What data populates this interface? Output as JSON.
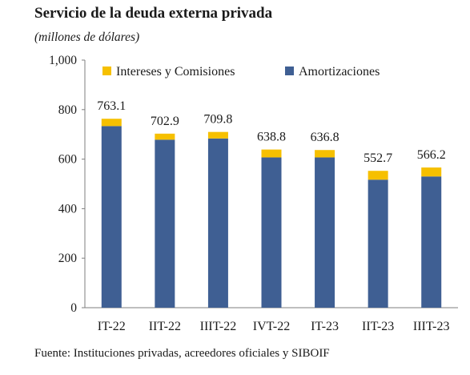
{
  "title": "Servicio de la deuda externa privada",
  "subtitle": "(millones de dólares)",
  "source": "Fuente: Instituciones privadas, acreedores oficiales y SIBOIF",
  "colors": {
    "intereses": "#f6c000",
    "amortizaciones": "#3f5f93"
  },
  "chart_data": {
    "type": "bar",
    "stacked": true,
    "title": "Servicio de la deuda externa privada",
    "subtitle": "(millones de dólares)",
    "categories": [
      "IT-22",
      "IIT-22",
      "IIIT-22",
      "IVT-22",
      "IT-23",
      "IIT-23",
      "IIIT-23"
    ],
    "series": [
      {
        "name": "Amortizaciones",
        "values": [
          733.5,
          678.5,
          683.5,
          607.0,
          607.0,
          517.0,
          530.0
        ]
      },
      {
        "name": "Intereses y Comisiones",
        "values": [
          29.6,
          24.4,
          26.3,
          31.8,
          29.8,
          35.7,
          36.2
        ]
      }
    ],
    "totals": [
      "763.1",
      "702.9",
      "709.8",
      "638.8",
      "636.8",
      "552.7",
      "566.2"
    ],
    "ylim": [
      0,
      1000
    ],
    "yticks": [
      "0",
      "200",
      "400",
      "600",
      "800",
      "1,000"
    ],
    "ytick_values": [
      0,
      200,
      400,
      600,
      800,
      1000
    ],
    "legend": [
      "Intereses y Comisiones",
      "Amortizaciones"
    ],
    "legend_position": "top",
    "grid": false
  }
}
